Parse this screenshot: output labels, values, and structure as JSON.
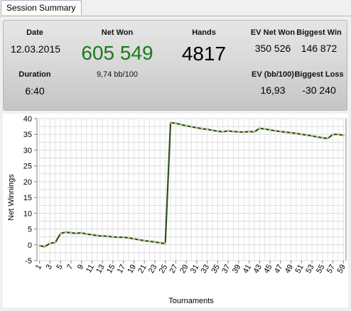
{
  "tab": {
    "label": "Session Summary"
  },
  "summary": {
    "date": {
      "label": "Date",
      "value": "12.03.2015"
    },
    "duration": {
      "label": "Duration",
      "value": "6:40"
    },
    "net_won": {
      "label": "Net Won",
      "value": "605 549",
      "sub": "9,74 bb/100"
    },
    "hands": {
      "label": "Hands",
      "value": "4817"
    },
    "ev_net_won": {
      "label": "EV Net Won",
      "value": "350 526"
    },
    "biggest_win": {
      "label": "Biggest Win",
      "value": "146 872"
    },
    "ev_bb100": {
      "label": "EV (bb/100)",
      "value": "16,93"
    },
    "biggest_loss": {
      "label": "Biggest Loss",
      "value": "-30 240"
    }
  },
  "colors": {
    "net_won": "#1a7a1a",
    "line": "#2f4f1a",
    "marker": "#b5c98a"
  },
  "chart_data": {
    "type": "line",
    "xlabel": "Tournaments",
    "ylabel": "Net Winnings",
    "x_ticks": [
      "1",
      "3",
      "5",
      "7",
      "9",
      "11",
      "13",
      "15",
      "17",
      "19",
      "21",
      "23",
      "25",
      "27",
      "29",
      "31",
      "33",
      "35",
      "37",
      "39",
      "41",
      "43",
      "45",
      "47",
      "49",
      "51",
      "53",
      "55",
      "57",
      "59"
    ],
    "y_ticks": [
      "-5",
      "0",
      "5",
      "10",
      "15",
      "20",
      "25",
      "30",
      "35",
      "40"
    ],
    "xlim": [
      0.5,
      59.5
    ],
    "ylim": [
      -5,
      40
    ],
    "grid": true,
    "series": [
      {
        "x": [
          1,
          2,
          3,
          4,
          5,
          6,
          7,
          8,
          9,
          10,
          11,
          12,
          13,
          14,
          15,
          16,
          17,
          18,
          19,
          20,
          21,
          22,
          23,
          24,
          25,
          26,
          27,
          28,
          29,
          30,
          31,
          32,
          33,
          34,
          35,
          36,
          37,
          38,
          39,
          40,
          41,
          42,
          43,
          44,
          45,
          46,
          47,
          48,
          49,
          50,
          51,
          52,
          53,
          54,
          55,
          56,
          57,
          58,
          59
        ],
        "values": [
          -0.3,
          -0.6,
          0.5,
          0.7,
          3.6,
          4.0,
          3.8,
          3.6,
          3.8,
          3.4,
          3.2,
          2.9,
          2.8,
          2.7,
          2.5,
          2.4,
          2.4,
          2.2,
          1.9,
          1.6,
          1.3,
          1.1,
          0.9,
          0.6,
          0.4,
          38.7,
          38.5,
          38.1,
          37.7,
          37.4,
          37.1,
          36.8,
          36.6,
          36.3,
          36.0,
          35.8,
          36.1,
          35.9,
          35.8,
          35.7,
          35.9,
          35.8,
          36.9,
          36.7,
          36.4,
          36.1,
          35.9,
          35.7,
          35.5,
          35.3,
          35.0,
          34.8,
          34.5,
          34.2,
          33.9,
          33.7,
          35.0,
          35.0,
          34.7
        ]
      }
    ]
  }
}
